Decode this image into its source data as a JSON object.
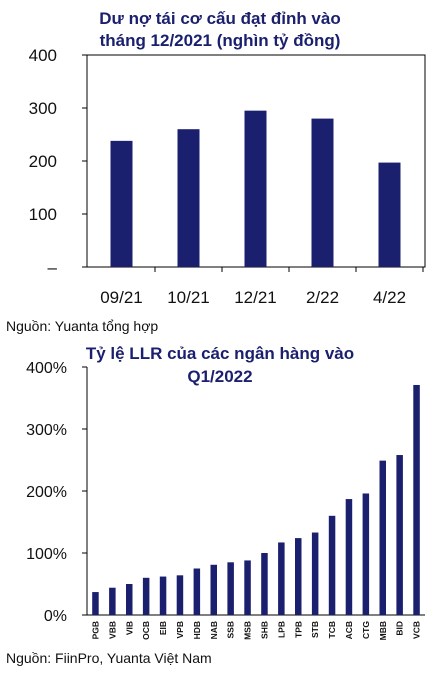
{
  "charts": [
    {
      "title_line1": "Dư nợ tái cơ cấu đạt đỉnh vào",
      "title_line2": "tháng 12/2021 (nghìn tỷ đồng)",
      "source": "Nguồn: Yuanta tổng hợp"
    },
    {
      "title_line1": "Tỷ lệ LLR của các ngân hàng vào",
      "title_line2": "Q1/2022",
      "source": "Nguồn: FiinPro, Yuanta Việt Nam"
    }
  ],
  "chart_data": [
    {
      "type": "bar",
      "title": "Dư nợ tái cơ cấu đạt đỉnh vào tháng 12/2021 (nghìn tỷ đồng)",
      "categories": [
        "09/21",
        "10/21",
        "12/21",
        "2/22",
        "4/22"
      ],
      "values": [
        238,
        260,
        295,
        280,
        197
      ],
      "ylim": [
        0,
        400
      ],
      "yticks": [
        "–",
        "100",
        "200",
        "300",
        "400"
      ],
      "grid": false,
      "bar_color": "#1a1f6e"
    },
    {
      "type": "bar",
      "title": "Tỷ lệ LLR của các ngân hàng vào Q1/2022",
      "categories": [
        "PGB",
        "VBB",
        "VIB",
        "OCB",
        "EIB",
        "VPB",
        "HDB",
        "NAB",
        "SSB",
        "MSB",
        "SHB",
        "LPB",
        "TPB",
        "STB",
        "TCB",
        "ACB",
        "CTG",
        "MBB",
        "BID",
        "VCB"
      ],
      "values": [
        37,
        44,
        50,
        60,
        62,
        64,
        75,
        81,
        85,
        88,
        100,
        117,
        124,
        133,
        160,
        187,
        196,
        249,
        258,
        371
      ],
      "ylim": [
        0,
        400
      ],
      "yticks": [
        "0%",
        "100%",
        "200%",
        "300%",
        "400%"
      ],
      "grid": false,
      "bar_color": "#1a1f6e"
    }
  ]
}
